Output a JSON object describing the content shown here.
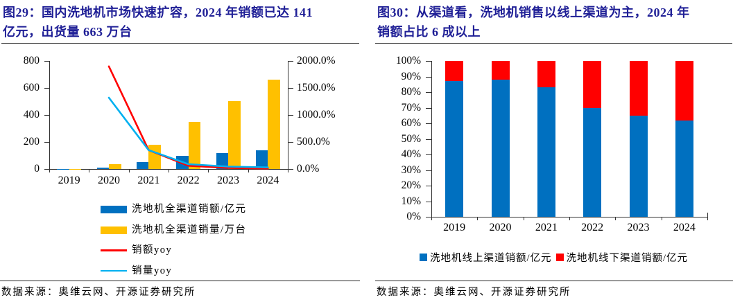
{
  "page": {
    "background": "#FFFFFF",
    "title_color": "#1F1F96",
    "axis_color": "#333333"
  },
  "figures": [
    {
      "label": "图29",
      "title_lines": [
        "图29：国内洗地机市场快速扩容，2024 年销额已达 141",
        "亿元，出货量 663 万台"
      ],
      "source": "数据来源：奥维云网、开源证券研究所"
    },
    {
      "label": "图30",
      "title_lines": [
        "图30：从渠道看，洗地机销售以线上渠道为主，2024 年",
        "销额占比 6 成以上"
      ],
      "source": "数据来源：奥维云网、开源证券研究所"
    }
  ],
  "chart_data": [
    {
      "type": "bar",
      "subtype": "combo-bar-line-dual-axis",
      "title": "图29：国内洗地机市场快速扩容，2024 年销额已达 141 亿元，出货量 663 万台",
      "categories": [
        "2019",
        "2020",
        "2021",
        "2022",
        "2023",
        "2024"
      ],
      "series": [
        {
          "name": "洗地机全渠道销额/亿元",
          "type": "bar",
          "axis": "left",
          "color": "#0070C0",
          "values": [
            1,
            10,
            50,
            97,
            120,
            141
          ]
        },
        {
          "name": "洗地机全渠道销量/万台",
          "type": "bar",
          "axis": "left",
          "color": "#FFC000",
          "values": [
            2,
            35,
            180,
            348,
            505,
            663
          ]
        },
        {
          "name": "销额yoy",
          "type": "line",
          "axis": "right",
          "color": "#FF0000",
          "values": [
            null,
            1900,
            350,
            60,
            20,
            10
          ]
        },
        {
          "name": "销量yoy",
          "type": "line",
          "axis": "right",
          "color": "#00B0F0",
          "values": [
            null,
            1320,
            350,
            90,
            45,
            30
          ]
        }
      ],
      "left_axis": {
        "min": 0,
        "max": 800,
        "tick_labels": [
          "0",
          "200",
          "400",
          "600",
          "800"
        ]
      },
      "right_axis": {
        "min": 0,
        "max": 2000,
        "tick_labels": [
          "0.0%",
          "500.0%",
          "1000.0%",
          "1500.0%",
          "2000.0%"
        ]
      },
      "grid": false,
      "legend_position": "bottom"
    },
    {
      "type": "bar",
      "subtype": "stacked-100-percent",
      "title": "图30：从渠道看，洗地机销售以线上渠道为主，2024 年销额占比 6 成以上",
      "categories": [
        "2019",
        "2020",
        "2021",
        "2022",
        "2023",
        "2024"
      ],
      "series": [
        {
          "name": "洗地机线上渠道销额/亿元",
          "color": "#0070C0",
          "values": [
            87,
            88,
            83,
            70,
            65,
            62
          ]
        },
        {
          "name": "洗地机线下渠道销额/亿元",
          "color": "#FF0000",
          "values": [
            13,
            12,
            17,
            30,
            35,
            38
          ]
        }
      ],
      "y_axis": {
        "min": 0,
        "max": 100,
        "tick_labels": [
          "0%",
          "10%",
          "20%",
          "30%",
          "40%",
          "50%",
          "60%",
          "70%",
          "80%",
          "90%",
          "100%"
        ]
      },
      "grid": false,
      "legend_position": "bottom"
    }
  ]
}
